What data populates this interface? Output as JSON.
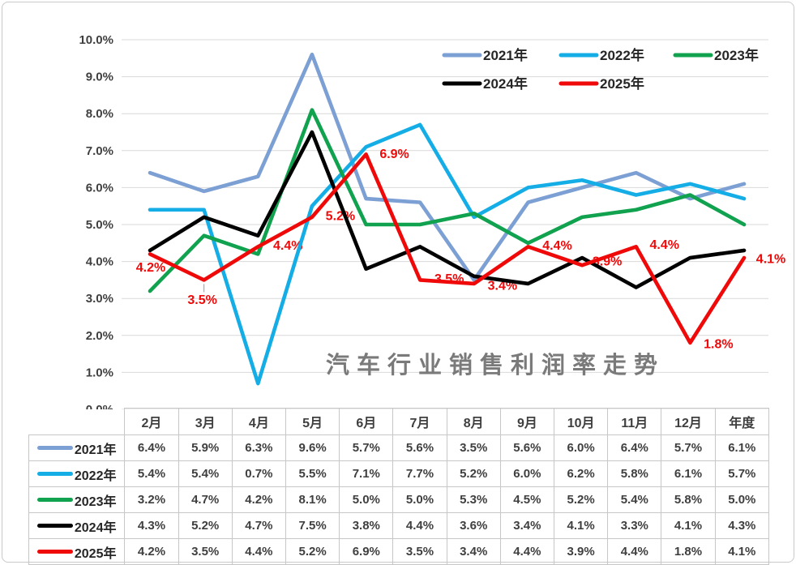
{
  "chart_data": {
    "type": "line",
    "title": "汽车行业销售利润率走势",
    "categories": [
      "2月",
      "3月",
      "4月",
      "5月",
      "6月",
      "7月",
      "8月",
      "9月",
      "10月",
      "11月",
      "12月",
      "年度"
    ],
    "y_ticks": [
      "0.0%",
      "1.0%",
      "2.0%",
      "3.0%",
      "4.0%",
      "5.0%",
      "6.0%",
      "7.0%",
      "8.0%",
      "9.0%",
      "10.0%"
    ],
    "ylim": [
      0,
      10
    ],
    "grid": true,
    "legend_position": "top-right-inside",
    "legend_rows": [
      [
        "2021年",
        "2022年",
        "2023年"
      ],
      [
        "2024年",
        "2025年"
      ]
    ],
    "series": [
      {
        "name": "2021年",
        "color": "#7C9FD4",
        "values": [
          6.4,
          5.9,
          6.3,
          9.6,
          5.7,
          5.6,
          3.5,
          5.6,
          6.0,
          6.4,
          5.7,
          6.1
        ]
      },
      {
        "name": "2022年",
        "color": "#14ADE6",
        "values": [
          5.4,
          5.4,
          0.7,
          5.5,
          7.1,
          7.7,
          5.2,
          6.0,
          6.2,
          5.8,
          6.1,
          5.7
        ]
      },
      {
        "name": "2023年",
        "color": "#10A24E",
        "values": [
          3.2,
          4.7,
          4.2,
          8.1,
          5.0,
          5.0,
          5.3,
          4.5,
          5.2,
          5.4,
          5.8,
          5.0
        ]
      },
      {
        "name": "2024年",
        "color": "#000000",
        "values": [
          4.3,
          5.2,
          4.7,
          7.5,
          3.8,
          4.4,
          3.6,
          3.4,
          4.1,
          3.3,
          4.1,
          4.3
        ]
      },
      {
        "name": "2025年",
        "color": "#EF0909",
        "values": [
          4.2,
          3.5,
          4.4,
          5.2,
          6.9,
          3.5,
          3.4,
          4.4,
          3.9,
          4.4,
          1.8,
          4.1
        ],
        "data_labels": [
          "4.2%",
          "3.5%",
          "4.4%",
          "5.2%",
          "6.9%",
          "3.5%",
          "3.4%",
          "4.4%",
          "3.9%",
          "4.4%",
          "1.8%",
          "4.1%"
        ]
      }
    ]
  },
  "table": {
    "corner_label": "",
    "col_headers": [
      "2月",
      "3月",
      "4月",
      "5月",
      "6月",
      "7月",
      "8月",
      "9月",
      "10月",
      "11月",
      "12月",
      "年度"
    ],
    "rows": [
      {
        "label": "2021年",
        "color": "#7C9FD4",
        "cells": [
          "6.4%",
          "5.9%",
          "6.3%",
          "9.6%",
          "5.7%",
          "5.6%",
          "3.5%",
          "5.6%",
          "6.0%",
          "6.4%",
          "5.7%",
          "6.1%"
        ]
      },
      {
        "label": "2022年",
        "color": "#14ADE6",
        "cells": [
          "5.4%",
          "5.4%",
          "0.7%",
          "5.5%",
          "7.1%",
          "7.7%",
          "5.2%",
          "6.0%",
          "6.2%",
          "5.8%",
          "6.1%",
          "5.7%"
        ]
      },
      {
        "label": "2023年",
        "color": "#10A24E",
        "cells": [
          "3.2%",
          "4.7%",
          "4.2%",
          "8.1%",
          "5.0%",
          "5.0%",
          "5.3%",
          "4.5%",
          "5.2%",
          "5.4%",
          "5.8%",
          "5.0%"
        ]
      },
      {
        "label": "2024年",
        "color": "#000000",
        "cells": [
          "4.3%",
          "5.2%",
          "4.7%",
          "7.5%",
          "3.8%",
          "4.4%",
          "3.6%",
          "3.4%",
          "4.1%",
          "3.3%",
          "4.1%",
          "4.3%"
        ]
      },
      {
        "label": "2025年",
        "color": "#EF0909",
        "cells": [
          "4.2%",
          "3.5%",
          "4.4%",
          "5.2%",
          "6.9%",
          "3.5%",
          "3.4%",
          "4.4%",
          "3.9%",
          "4.4%",
          "1.8%",
          "4.1%"
        ]
      }
    ]
  }
}
